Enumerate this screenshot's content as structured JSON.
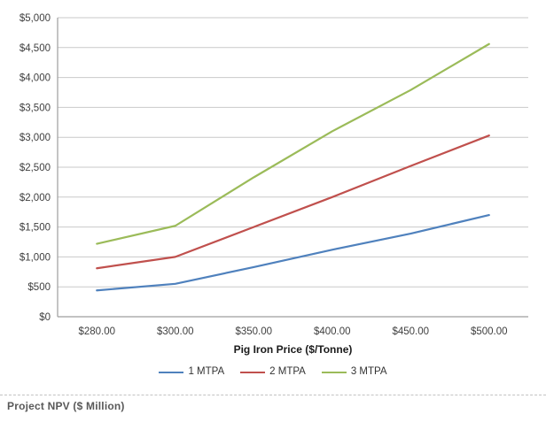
{
  "caption": "Project NPV ($ Million)",
  "chart_data": {
    "type": "line",
    "title": "",
    "xlabel": "Pig Iron Price ($/Tonne)",
    "ylabel": "Project NPV ($ Million)",
    "x_categories": [
      "$280.00",
      "$300.00",
      "$350.00",
      "$400.00",
      "$450.00",
      "$500.00"
    ],
    "x_values_numeric": [
      280,
      300,
      350,
      400,
      450,
      500
    ],
    "series": [
      {
        "name": "1 MTPA",
        "color": "#4F81BD",
        "values": [
          440,
          550,
          830,
          1120,
          1390,
          1700
        ]
      },
      {
        "name": "2 MTPA",
        "color": "#C0504D",
        "values": [
          810,
          1000,
          1500,
          2000,
          2520,
          3030
        ]
      },
      {
        "name": "3 MTPA",
        "color": "#9BBB59",
        "values": [
          1220,
          1520,
          2330,
          3100,
          3790,
          4560
        ]
      }
    ],
    "y_ticks": [
      "$0",
      "$500",
      "$1,000",
      "$1,500",
      "$2,000",
      "$2,500",
      "$3,000",
      "$3,500",
      "$4,000",
      "$4,500",
      "$5,000"
    ],
    "y_step": 500,
    "ylim": [
      0,
      5000
    ],
    "grid": "horizontal",
    "legend_position": "bottom",
    "colors": {
      "gridline": "#C9C9C9",
      "axis_line": "#9E9E9E",
      "tick_label": "#3F3F3F",
      "axis_title": "#1A1A1A",
      "background": "#FFFFFF"
    }
  }
}
